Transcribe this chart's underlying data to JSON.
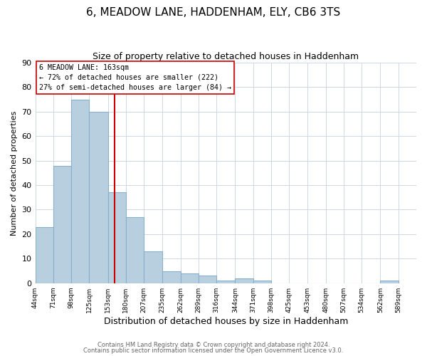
{
  "title": "6, MEADOW LANE, HADDENHAM, ELY, CB6 3TS",
  "subtitle": "Size of property relative to detached houses in Haddenham",
  "xlabel": "Distribution of detached houses by size in Haddenham",
  "ylabel": "Number of detached properties",
  "bar_color": "#b8cfe0",
  "bar_edge_color": "#8aafc8",
  "vline_x": 163,
  "vline_color": "#cc0000",
  "bin_edges": [
    44,
    71,
    98,
    125,
    153,
    180,
    207,
    235,
    262,
    289,
    316,
    344,
    371,
    398,
    425,
    453,
    480,
    507,
    534,
    562,
    589
  ],
  "bar_heights": [
    23,
    48,
    75,
    70,
    37,
    27,
    13,
    5,
    4,
    3,
    1,
    2,
    1,
    0,
    0,
    0,
    0,
    0,
    0,
    1
  ],
  "xlim": [
    44,
    616
  ],
  "ylim": [
    0,
    90
  ],
  "yticks": [
    0,
    10,
    20,
    30,
    40,
    50,
    60,
    70,
    80,
    90
  ],
  "annotation_line1": "6 MEADOW LANE: 163sqm",
  "annotation_line2": "← 72% of detached houses are smaller (222)",
  "annotation_line3": "27% of semi-detached houses are larger (84) →",
  "annotation_box_color": "#ffffff",
  "annotation_box_edge": "#cc0000",
  "footer1": "Contains HM Land Registry data © Crown copyright and database right 2024.",
  "footer2": "Contains public sector information licensed under the Open Government Licence v3.0.",
  "background_color": "#ffffff",
  "grid_color": "#ccd8e4",
  "title_fontsize": 11,
  "subtitle_fontsize": 9,
  "ylabel_fontsize": 8,
  "xlabel_fontsize": 9,
  "tick_labels": [
    "44sqm",
    "71sqm",
    "98sqm",
    "125sqm",
    "153sqm",
    "180sqm",
    "207sqm",
    "235sqm",
    "262sqm",
    "289sqm",
    "316sqm",
    "344sqm",
    "371sqm",
    "398sqm",
    "425sqm",
    "453sqm",
    "480sqm",
    "507sqm",
    "534sqm",
    "562sqm",
    "589sqm"
  ]
}
